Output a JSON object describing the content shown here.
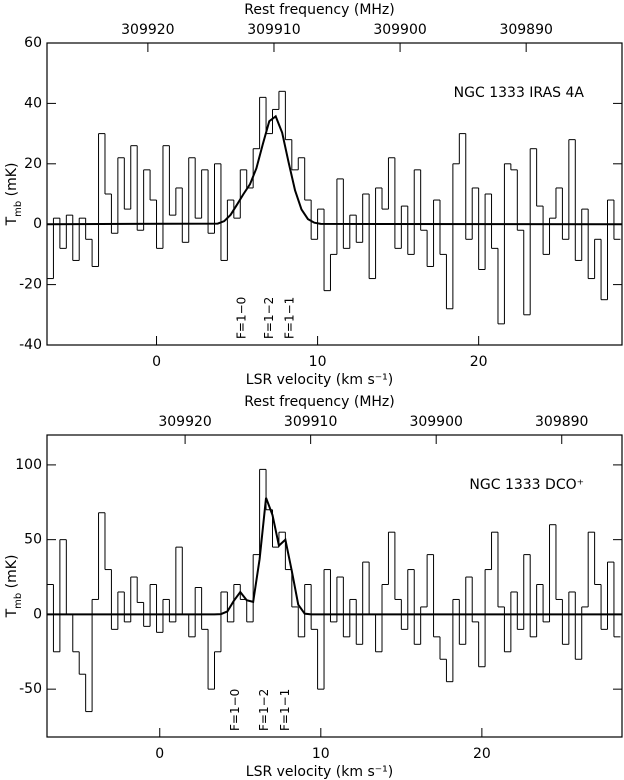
{
  "chart_data": [
    {
      "type": "line",
      "title": "NGC 1333 IRAS 4A",
      "xlabel": "LSR velocity (km s⁻¹)",
      "x2label": "Rest frequency (MHz)",
      "ylabel": [
        "T",
        "mb",
        " (mK)"
      ],
      "xlim": [
        -6.8,
        28.9
      ],
      "xticks": [
        0,
        10,
        20
      ],
      "x2lim": [
        309928.0,
        309882.4
      ],
      "x2ticks": [
        309920,
        309910,
        309900,
        309890
      ],
      "ylim": [
        -40,
        60
      ],
      "yticks": [
        -40,
        -20,
        0,
        20,
        40,
        60
      ],
      "x": [
        -6.6,
        -6.2,
        -5.8,
        -5.4,
        -5.0,
        -4.6,
        -4.2,
        -3.8,
        -3.4,
        -3.0,
        -2.6,
        -2.2,
        -1.8,
        -1.4,
        -1.0,
        -0.6,
        -0.2,
        0.2,
        0.6,
        1.0,
        1.4,
        1.8,
        2.2,
        2.6,
        3.0,
        3.4,
        3.8,
        4.2,
        4.6,
        5.0,
        5.4,
        5.8,
        6.2,
        6.6,
        7.0,
        7.4,
        7.8,
        8.2,
        8.6,
        9.0,
        9.4,
        9.8,
        10.2,
        10.6,
        11.0,
        11.4,
        11.8,
        12.2,
        12.6,
        13.0,
        13.4,
        13.8,
        14.2,
        14.6,
        15.0,
        15.4,
        15.8,
        16.2,
        16.6,
        17.0,
        17.4,
        17.8,
        18.2,
        18.6,
        19.0,
        19.4,
        19.8,
        20.2,
        20.6,
        21.0,
        21.4,
        21.8,
        22.2,
        22.6,
        23.0,
        23.4,
        23.8,
        24.2,
        24.6,
        25.0,
        25.4,
        25.8,
        26.2,
        26.6,
        27.0,
        27.4,
        27.8,
        28.2,
        28.6
      ],
      "series": [
        {
          "color": "#000000",
          "drawstyle": "steps-mid",
          "values": [
            -18,
            2,
            -8,
            3,
            -12,
            2,
            -5,
            -14,
            30,
            10,
            -3,
            22,
            5,
            26,
            -2,
            18,
            8,
            -8,
            26,
            3,
            12,
            -6,
            22,
            2,
            18,
            -3,
            20,
            -12,
            8,
            2,
            18,
            12,
            25,
            42,
            30,
            38,
            44,
            28,
            18,
            22,
            8,
            -5,
            5,
            -22,
            -10,
            15,
            -8,
            3,
            -6,
            10,
            -18,
            12,
            5,
            22,
            -8,
            6,
            -10,
            18,
            -2,
            -14,
            8,
            -10,
            -28,
            20,
            30,
            -5,
            12,
            -15,
            10,
            -8,
            -33,
            20,
            18,
            -2,
            -30,
            25,
            6,
            -10,
            2,
            12,
            -5,
            28,
            -12,
            5,
            -18,
            -5,
            -25,
            8,
            -5
          ]
        },
        {
          "color": "#000000",
          "drawstyle": "default",
          "x": [
            -6.8,
            3.8,
            4.2,
            4.6,
            5.0,
            5.4,
            5.8,
            6.2,
            6.6,
            7.0,
            7.4,
            7.8,
            8.2,
            8.6,
            9.0,
            9.4,
            9.8,
            10.2,
            28.9
          ],
          "values": [
            0,
            0.2,
            1.0,
            3.1,
            6.5,
            10.0,
            13.2,
            18.5,
            26.5,
            34.1,
            35.7,
            30.3,
            20.5,
            11.2,
            4.9,
            1.7,
            0.5,
            0.1,
            0
          ]
        }
      ],
      "annotations": [
        {
          "text": "F=1−0",
          "x": 5.3
        },
        {
          "text": "F=1−2",
          "x": 7.0
        },
        {
          "text": "F=1−1",
          "x": 8.3
        }
      ]
    },
    {
      "type": "line",
      "title": "NGC 1333 DCO⁺",
      "xlabel": "LSR velocity (km s⁻¹)",
      "x2label": "Rest frequency (MHz)",
      "ylabel": [
        "T",
        "mb",
        " (mK)"
      ],
      "xlim": [
        -7.0,
        28.7
      ],
      "xticks": [
        0,
        10,
        20
      ],
      "x2lim": [
        309931.0,
        309885.2
      ],
      "x2ticks": [
        309920,
        309910,
        309900,
        309890
      ],
      "ylim": [
        -82,
        120
      ],
      "yticks": [
        -50,
        0,
        50,
        100
      ],
      "x": [
        -6.8,
        -6.4,
        -6.0,
        -5.6,
        -5.2,
        -4.8,
        -4.4,
        -4.0,
        -3.6,
        -3.2,
        -2.8,
        -2.4,
        -2.0,
        -1.6,
        -1.2,
        -0.8,
        -0.4,
        0.0,
        0.4,
        0.8,
        1.2,
        1.6,
        2.0,
        2.4,
        2.8,
        3.2,
        3.6,
        4.0,
        4.4,
        4.8,
        5.2,
        5.6,
        6.0,
        6.4,
        6.8,
        7.2,
        7.6,
        8.0,
        8.4,
        8.8,
        9.2,
        9.6,
        10.0,
        10.4,
        10.8,
        11.2,
        11.6,
        12.0,
        12.4,
        12.8,
        13.2,
        13.6,
        14.0,
        14.4,
        14.8,
        15.2,
        15.6,
        16.0,
        16.4,
        16.8,
        17.2,
        17.6,
        18.0,
        18.4,
        18.8,
        19.2,
        19.6,
        20.0,
        20.4,
        20.8,
        21.2,
        21.6,
        22.0,
        22.4,
        22.8,
        23.2,
        23.6,
        24.0,
        24.4,
        24.8,
        25.2,
        25.6,
        26.0,
        26.4,
        26.8,
        27.2,
        27.6,
        28.0,
        28.4
      ],
      "series": [
        {
          "color": "#000000",
          "drawstyle": "steps-mid",
          "values": [
            20,
            -25,
            50,
            0,
            -25,
            -40,
            -65,
            10,
            68,
            30,
            -10,
            15,
            -5,
            25,
            8,
            -8,
            20,
            -12,
            10,
            -5,
            45,
            0,
            -15,
            18,
            -10,
            -50,
            -25,
            15,
            -5,
            20,
            10,
            -5,
            40,
            97,
            70,
            45,
            55,
            30,
            5,
            -15,
            20,
            -10,
            -50,
            30,
            -5,
            25,
            -15,
            10,
            -20,
            35,
            0,
            -25,
            20,
            55,
            10,
            -10,
            30,
            -20,
            5,
            40,
            -15,
            -30,
            -45,
            10,
            -20,
            25,
            -5,
            -35,
            30,
            55,
            5,
            -25,
            15,
            -10,
            40,
            -15,
            20,
            -5,
            60,
            10,
            -20,
            15,
            -30,
            5,
            55,
            20,
            -10,
            35,
            -15
          ]
        },
        {
          "color": "#000000",
          "drawstyle": "default",
          "x": [
            -7.0,
            3.4,
            3.8,
            4.2,
            4.6,
            5.0,
            5.4,
            5.8,
            6.2,
            6.6,
            7.0,
            7.4,
            7.8,
            8.2,
            8.6,
            9.0,
            9.4,
            28.7
          ],
          "values": [
            0,
            0,
            0.2,
            2.0,
            9.1,
            15,
            9.5,
            8.4,
            37,
            78,
            66.5,
            46,
            50,
            29,
            6.5,
            0.5,
            0,
            0
          ]
        }
      ],
      "annotations": [
        {
          "text": "F=1−0",
          "x": 4.7
        },
        {
          "text": "F=1−2",
          "x": 6.5
        },
        {
          "text": "F=1−1",
          "x": 7.8
        }
      ]
    }
  ]
}
